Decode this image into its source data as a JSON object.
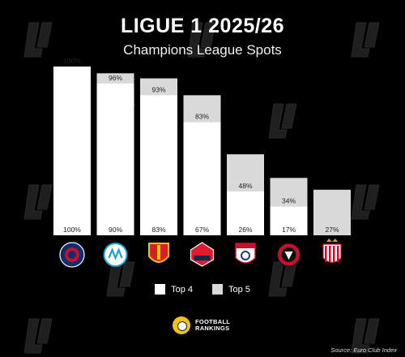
{
  "title": "LIGUE 1 2025/26",
  "subtitle": "Champions League Spots",
  "legend": {
    "top4": "Top 4",
    "top5": "Top 5"
  },
  "brand": {
    "line1": "FOOTBALL",
    "line2": "RANKINGS"
  },
  "source": "Source: Euro Club Index",
  "colors": {
    "background": "#000000",
    "top4": "#ffffff",
    "top5": "#d9d9d9",
    "label": "#222222"
  },
  "chart_data": {
    "type": "bar",
    "title": "LIGUE 1 2025/26",
    "subtitle": "Champions League Spots",
    "categories": [
      "PSG",
      "Marseille",
      "Lens",
      "Lille",
      "Lyon",
      "Rennes",
      "Monaco"
    ],
    "series": [
      {
        "name": "Top 4",
        "values": [
          100,
          90,
          83,
          67,
          26,
          17,
          0
        ],
        "labels": [
          "100%",
          "90%",
          "83%",
          "67%",
          "26%",
          "17%",
          ""
        ]
      },
      {
        "name": "Top 5",
        "values": [
          100,
          96,
          93,
          83,
          48,
          34,
          27
        ],
        "labels": [
          "100%",
          "96%",
          "93%",
          "83%",
          "48%",
          "34%",
          "27%"
        ]
      }
    ],
    "ylim": [
      0,
      100
    ],
    "legend": "bottom-center",
    "grid": false
  },
  "club_icons": [
    "psg-crest-icon",
    "marseille-crest-icon",
    "lens-crest-icon",
    "lille-crest-icon",
    "lyon-crest-icon",
    "rennes-crest-icon",
    "monaco-crest-icon"
  ]
}
